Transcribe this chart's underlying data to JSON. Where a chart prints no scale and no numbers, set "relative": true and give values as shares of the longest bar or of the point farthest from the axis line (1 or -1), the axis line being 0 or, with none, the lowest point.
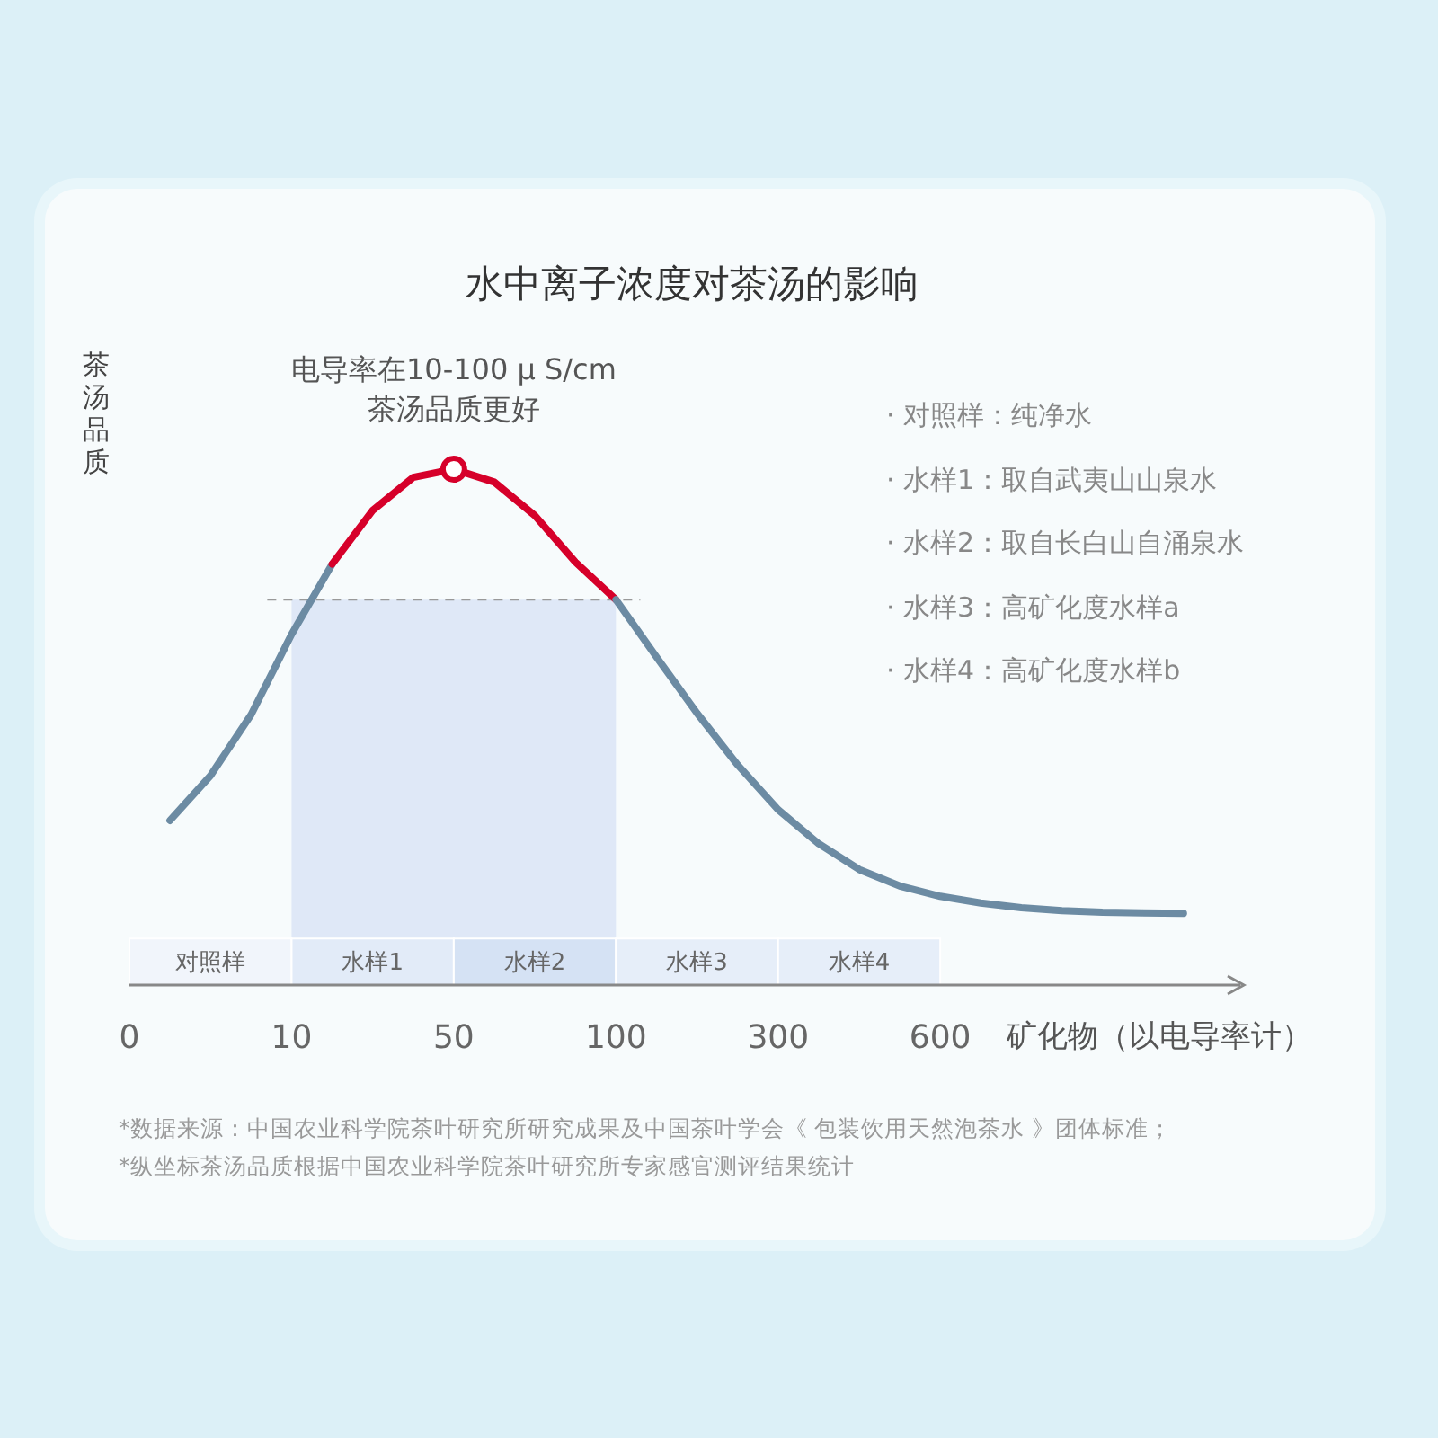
{
  "chart_data": {
    "type": "line",
    "title": "水中离子浓度对茶汤的影响",
    "xlabel": "矿化物（以电导率计）",
    "ylabel": "茶汤品质",
    "relative": true,
    "categories": [
      "0",
      null,
      null,
      null,
      "10",
      null,
      null,
      null,
      "50",
      null,
      null,
      null,
      "100",
      null,
      null,
      null,
      "300",
      null,
      null,
      null,
      "600",
      null,
      null,
      null,
      null,
      null,
      null
    ],
    "series": [
      {
        "color": "#6c8ba3",
        "values": [
          null,
          0.319,
          0.406,
          0.524,
          0.68,
          0.816,
          null,
          null,
          null,
          null,
          null,
          null,
          null,
          null,
          null,
          null,
          null,
          null,
          null,
          null,
          null,
          null,
          null,
          null,
          null,
          null,
          null
        ]
      },
      {
        "color": "#d6002a",
        "values": [
          null,
          null,
          null,
          null,
          null,
          0.816,
          0.92,
          0.984,
          1.0,
          0.975,
          0.91,
          0.82,
          0.747,
          null,
          null,
          null,
          null,
          null,
          null,
          null,
          null,
          null,
          null,
          null,
          null,
          null,
          null
        ]
      },
      {
        "color": "#6c8ba3",
        "values": [
          null,
          null,
          null,
          null,
          null,
          null,
          null,
          null,
          null,
          null,
          null,
          null,
          0.747,
          0.636,
          0.527,
          0.427,
          0.34,
          0.274,
          0.224,
          0.192,
          0.172,
          0.159,
          0.15,
          0.144,
          0.141,
          0.14,
          0.139
        ]
      },
      {
        "type": "scatter",
        "marker": "circle",
        "color": "#d6002a",
        "x": [
          "50"
        ],
        "values": [
          1.0
        ]
      }
    ],
    "bands": [
      {
        "axis": "x",
        "from": "10",
        "to": "100",
        "color": "#dbe6f6"
      },
      {
        "axis": "x",
        "from": "0",
        "to": "10",
        "label": "对照样",
        "color": "#f1f5fb"
      },
      {
        "axis": "x",
        "from": "10",
        "to": "50",
        "label": "水样1",
        "color": "#e2ebf8"
      },
      {
        "axis": "x",
        "from": "50",
        "to": "100",
        "label": "水样2",
        "color": "#d5e2f4"
      },
      {
        "axis": "x",
        "from": "100",
        "to": "300",
        "label": "水样3",
        "color": "#e6eef9"
      },
      {
        "axis": "x",
        "from": "300",
        "to": "600",
        "label": "水样4",
        "color": "#e6eef9"
      }
    ],
    "ref_lines": [
      {
        "axis": "y",
        "value": 0.747,
        "color": "#999999",
        "line_style": "dashed"
      }
    ],
    "annotations": [
      {
        "text": "电导率在10-100 μ S/cm\n茶汤品质更好",
        "x": "50",
        "y": 1.0
      },
      "· 对照样：纯净水",
      "· 水样1：取自武夷山山泉水",
      "· 水样2：取自长白山自涌泉水",
      "· 水样3：高矿化度水样a",
      "· 水样4：高矿化度水样b",
      "*数据来源：中国农业科学院茶叶研究所研究成果及中国茶叶学会《 包装饮用天然泡茶水 》团体标准；",
      "*纵坐标茶汤品质根据中国农业科学院茶叶研究所专家感官测评结果统计"
    ]
  }
}
